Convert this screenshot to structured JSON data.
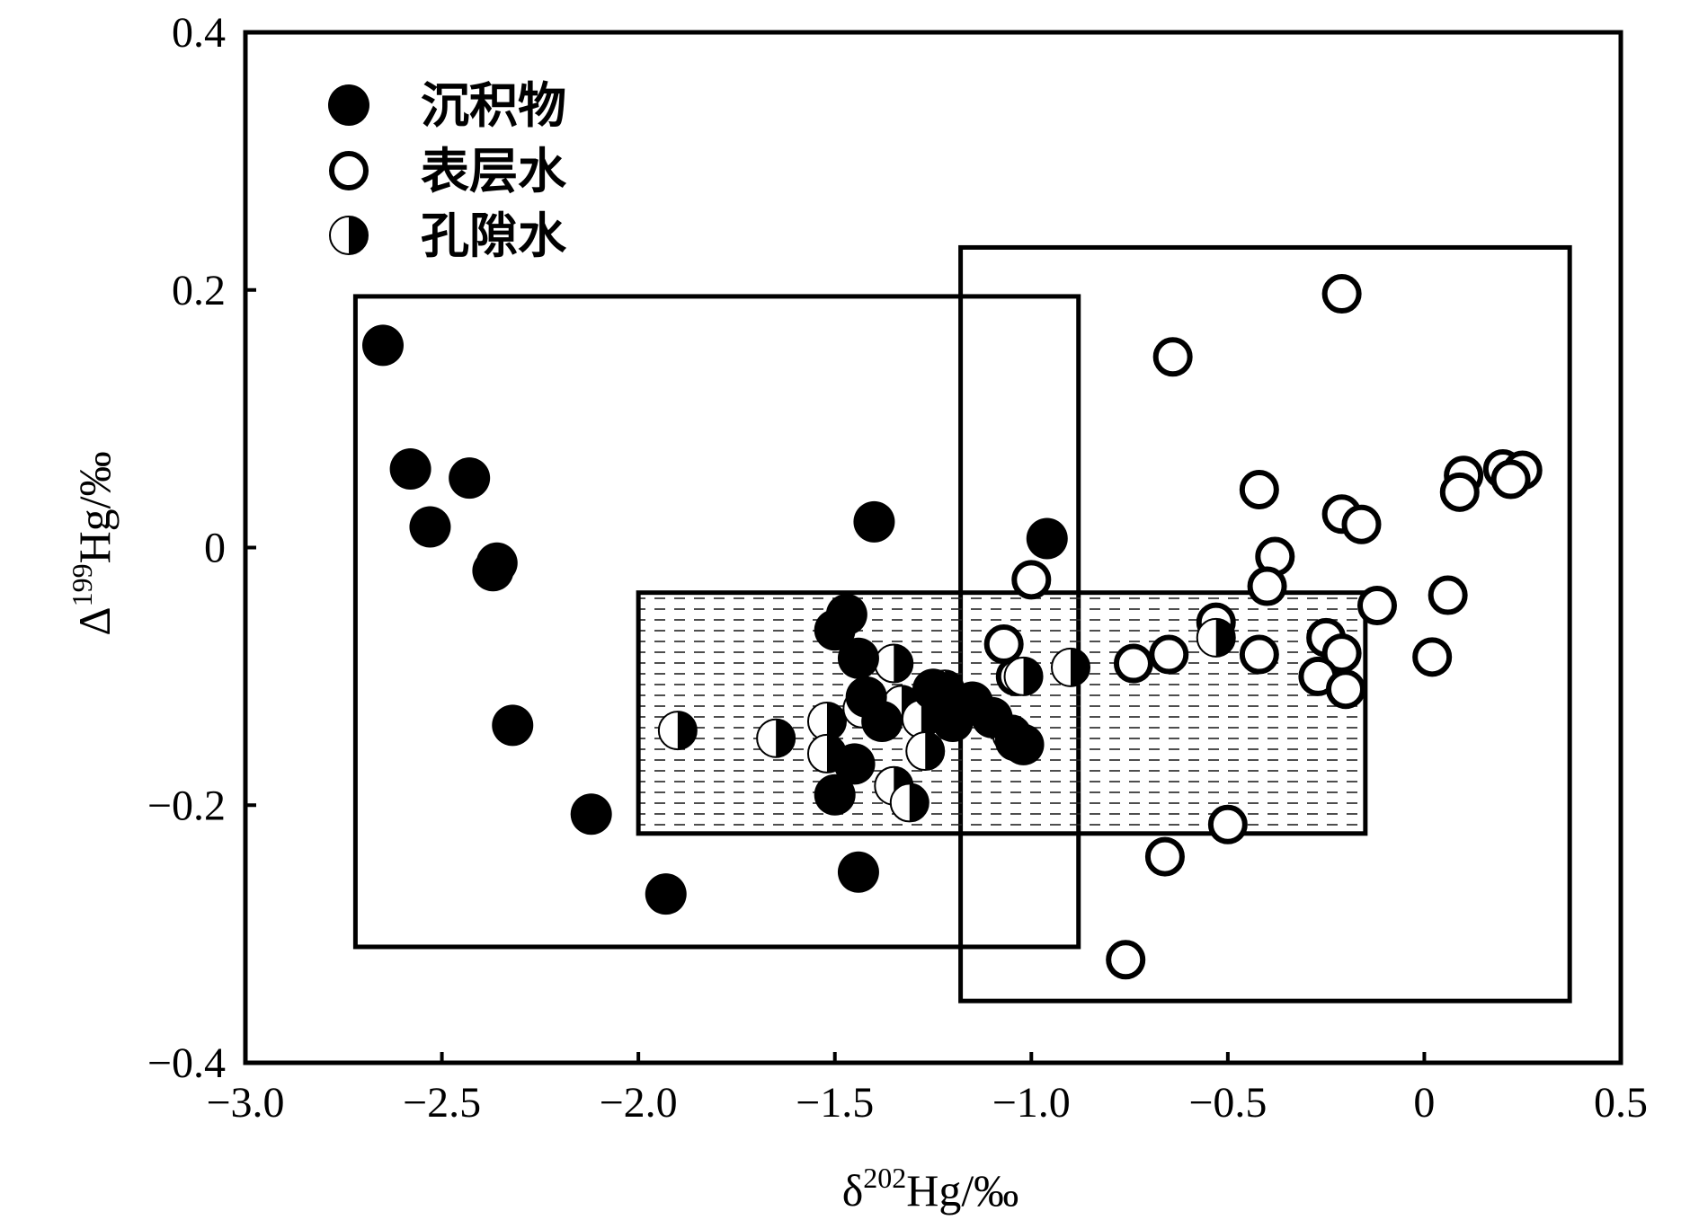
{
  "chart_data": {
    "type": "scatter",
    "title": "",
    "xlabel": {
      "prefix": "δ",
      "sup": "202",
      "suffix": "Hg/‰"
    },
    "ylabel": {
      "prefix": "Δ",
      "sup": "199",
      "suffix": "Hg/‰"
    },
    "xlim": [
      -3.0,
      0.5
    ],
    "ylim": [
      -0.4,
      0.4
    ],
    "xticks": [
      -3.0,
      -2.5,
      -2.0,
      -1.5,
      -1.0,
      -0.5,
      0,
      0.5
    ],
    "xtick_labels": [
      "−3.0",
      "−2.5",
      "−2.0",
      "−1.5",
      "−1.0",
      "−0.5",
      "0",
      "0.5"
    ],
    "yticks": [
      0.4,
      0.2,
      0,
      -0.2,
      -0.4
    ],
    "ytick_labels": [
      "0.4",
      "0.2",
      "0",
      "−0.2",
      "−0.4"
    ],
    "legend_position": "top-left",
    "legend": [
      "沉积物",
      "表层水",
      "孔隙水"
    ],
    "series": [
      {
        "name": "沉积物",
        "marker": "filled-circle",
        "points": [
          [
            -2.65,
            0.157
          ],
          [
            -2.58,
            0.061
          ],
          [
            -2.43,
            0.054
          ],
          [
            -2.53,
            0.016
          ],
          [
            -2.36,
            -0.012
          ],
          [
            -2.37,
            -0.018
          ],
          [
            -2.32,
            -0.138
          ],
          [
            -2.12,
            -0.207
          ],
          [
            -1.93,
            -0.269
          ],
          [
            -1.44,
            -0.252
          ],
          [
            -1.4,
            0.02
          ],
          [
            -0.96,
            0.007
          ],
          [
            -1.47,
            -0.052
          ],
          [
            -1.5,
            -0.064
          ],
          [
            -1.44,
            -0.086
          ],
          [
            -1.42,
            -0.116
          ],
          [
            -1.45,
            -0.168
          ],
          [
            -1.5,
            -0.192
          ],
          [
            -1.38,
            -0.135
          ],
          [
            -1.25,
            -0.11
          ],
          [
            -1.2,
            -0.135
          ],
          [
            -1.15,
            -0.12
          ],
          [
            -1.1,
            -0.132
          ],
          [
            -1.04,
            -0.15
          ],
          [
            -1.02,
            -0.153
          ]
        ]
      },
      {
        "name": "表层水",
        "marker": "open-circle",
        "points": [
          [
            -0.21,
            0.197
          ],
          [
            -0.64,
            0.148
          ],
          [
            -0.42,
            0.045
          ],
          [
            -0.21,
            0.026
          ],
          [
            -0.16,
            0.018
          ],
          [
            -0.38,
            -0.007
          ],
          [
            -0.4,
            -0.03
          ],
          [
            -1.0,
            -0.025
          ],
          [
            -0.12,
            -0.045
          ],
          [
            0.06,
            -0.037
          ],
          [
            0.1,
            0.056
          ],
          [
            0.09,
            0.043
          ],
          [
            0.2,
            0.061
          ],
          [
            0.25,
            0.06
          ],
          [
            0.22,
            0.053
          ],
          [
            -0.53,
            -0.058
          ],
          [
            -0.65,
            -0.083
          ],
          [
            -0.74,
            -0.09
          ],
          [
            -0.42,
            -0.083
          ],
          [
            -0.25,
            -0.07
          ],
          [
            -0.21,
            -0.082
          ],
          [
            -0.27,
            -0.1
          ],
          [
            -0.2,
            -0.11
          ],
          [
            0.02,
            -0.085
          ],
          [
            -0.5,
            -0.215
          ],
          [
            -0.66,
            -0.24
          ],
          [
            -0.76,
            -0.32
          ],
          [
            -1.07,
            -0.075
          ],
          [
            -1.04,
            -0.1
          ]
        ]
      },
      {
        "name": "孔隙水",
        "marker": "half-circle",
        "points": [
          [
            -1.9,
            -0.142
          ],
          [
            -1.65,
            -0.148
          ],
          [
            -1.52,
            -0.135
          ],
          [
            -1.52,
            -0.16
          ],
          [
            -1.43,
            -0.125
          ],
          [
            -1.35,
            -0.09
          ],
          [
            -1.35,
            -0.185
          ],
          [
            -1.31,
            -0.198
          ],
          [
            -1.33,
            -0.122
          ],
          [
            -1.28,
            -0.133
          ],
          [
            -1.27,
            -0.158
          ],
          [
            -1.22,
            -0.11
          ],
          [
            -1.05,
            -0.145
          ],
          [
            -1.02,
            -0.1
          ],
          [
            -0.9,
            -0.093
          ],
          [
            -0.53,
            -0.07
          ]
        ]
      }
    ],
    "regions": [
      {
        "name": "沉积物",
        "fill": "none",
        "x": [
          -2.72,
          -0.88
        ],
        "y": [
          -0.31,
          0.195
        ]
      },
      {
        "name": "表层水",
        "fill": "none",
        "x": [
          -1.18,
          0.37
        ],
        "y": [
          -0.352,
          0.233
        ]
      },
      {
        "name": "孔隙水",
        "fill": "hatched",
        "x": [
          -2.0,
          -0.15
        ],
        "y": [
          -0.222,
          -0.035
        ]
      }
    ]
  }
}
